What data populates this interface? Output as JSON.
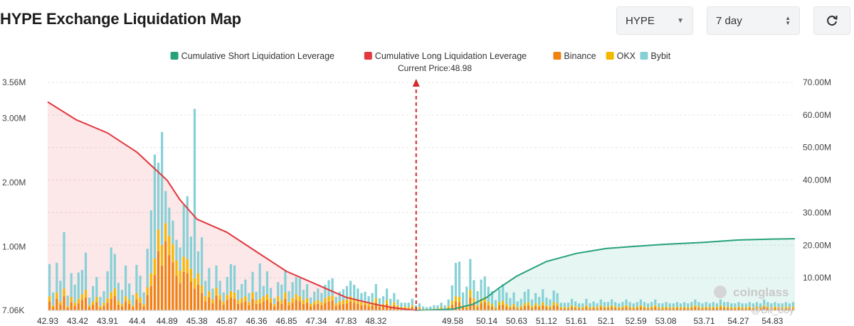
{
  "header": {
    "title": "HYPE Exchange Liquidation Map",
    "token_select": "HYPE",
    "range_select": "7 day"
  },
  "legend": [
    {
      "label": "Cumulative Short Liquidation Leverage",
      "color": "#26a17b"
    },
    {
      "label": "Cumulative Long Liquidation Leverage",
      "color": "#e0393e"
    },
    {
      "label": "Binance",
      "color": "#f0820f"
    },
    {
      "label": "OKX",
      "color": "#f5b800"
    },
    {
      "label": "Bybit",
      "color": "#86d1d6"
    }
  ],
  "watermark": "coinglass",
  "credit": "@Bit_boy",
  "chart_data": {
    "type": "bar",
    "title": "HYPE Exchange Liquidation Map",
    "current_price_label": "Current Price:48.98",
    "current_price": 48.98,
    "x_tick_labels": [
      "42.93",
      "43.42",
      "43.91",
      "44.4",
      "44.89",
      "45.38",
      "45.87",
      "46.36",
      "46.85",
      "47.34",
      "47.83",
      "48.32",
      "49.58",
      "50.14",
      "50.63",
      "51.12",
      "51.61",
      "52.1",
      "52.59",
      "53.08",
      "53.71",
      "54.27",
      "54.83"
    ],
    "left_axis_tick_labels": [
      "7.06K",
      "1.00M",
      "2.00M",
      "3.00M",
      "3.56M"
    ],
    "left_axis_ticks": [
      0.00706,
      1.0,
      2.0,
      3.0,
      3.56
    ],
    "ylim_left": [
      0.00706,
      3.56
    ],
    "right_axis_tick_labels": [
      "10.00M",
      "20.00M",
      "30.00M",
      "40.00M",
      "50.00M",
      "60.00M",
      "70.00M"
    ],
    "right_axis_ticks": [
      10,
      20,
      30,
      40,
      50,
      60,
      70
    ],
    "ylim_right": [
      0,
      70
    ],
    "grid": true,
    "legend_position": "top-center",
    "x_range": [
      42.93,
      55.2
    ],
    "bar_series": [
      {
        "name": "Binance",
        "color": "#f0820f",
        "values": [
          0.14,
          0.05,
          0.18,
          0.09,
          0.22,
          0.04,
          0.13,
          0.07,
          0.11,
          0.16,
          0.2,
          0.05,
          0.09,
          0.13,
          0.04,
          0.07,
          0.12,
          0.18,
          0.22,
          0.09,
          0.06,
          0.14,
          0.1,
          0.05,
          0.17,
          0.12,
          0.06,
          0.24,
          0.38,
          0.55,
          0.92,
          0.7,
          1.08,
          0.86,
          0.75,
          0.54,
          0.42,
          0.6,
          0.58,
          0.45,
          0.34,
          0.4,
          0.27,
          0.14,
          0.2,
          0.11,
          0.23,
          0.16,
          0.09,
          0.16,
          0.2,
          0.18,
          0.1,
          0.12,
          0.14,
          0.08,
          0.18,
          0.1,
          0.11,
          0.14,
          0.16,
          0.12,
          0.06,
          0.14,
          0.1,
          0.18,
          0.08,
          0.12,
          0.16,
          0.14,
          0.1,
          0.12,
          0.06,
          0.09,
          0.1,
          0.08,
          0.12,
          0.14,
          0.15,
          0.07,
          0.09,
          0.1,
          0.11,
          0.14,
          0.12,
          0.1,
          0.08,
          0.09,
          0.06,
          0.08,
          0.12,
          0.05,
          0.06,
          0.1,
          0.05,
          0.08,
          0.05,
          0.03,
          0.04,
          0.03,
          0.05,
          0.02,
          0.03,
          0.01,
          0.01,
          0.01,
          0.02,
          0.02,
          0.03,
          0.02,
          0.04,
          0.09,
          0.14,
          0.13,
          0.05,
          0.04,
          0.2,
          0.12,
          0.05,
          0.11,
          0.13,
          0.08,
          0.06,
          0.03,
          0.08,
          0.09,
          0.06,
          0.04,
          0.06,
          0.03,
          0.04,
          0.07,
          0.08,
          0.04,
          0.07,
          0.05,
          0.08,
          0.05,
          0.04,
          0.08,
          0.07,
          0.03,
          0.03,
          0.03,
          0.05,
          0.04,
          0.03,
          0.03,
          0.05,
          0.03,
          0.04,
          0.03,
          0.05,
          0.04,
          0.04,
          0.05,
          0.04,
          0.03,
          0.04,
          0.05,
          0.04,
          0.03,
          0.04,
          0.05,
          0.04,
          0.03,
          0.04,
          0.05,
          0.03,
          0.03,
          0.04,
          0.03,
          0.03,
          0.04,
          0.03,
          0.04,
          0.03,
          0.04,
          0.05,
          0.04,
          0.03,
          0.04,
          0.03,
          0.04,
          0.03,
          0.05,
          0.04,
          0.04,
          0.03,
          0.03,
          0.04,
          0.03,
          0.03,
          0.04,
          0.03,
          0.04,
          0.03,
          0.05,
          0.04,
          0.03,
          0.04,
          0.03,
          0.03,
          0.04,
          0.03,
          0.04
        ]
      },
      {
        "name": "OKX",
        "color": "#f5b800",
        "values": [
          0.08,
          0.03,
          0.1,
          0.05,
          0.12,
          0.03,
          0.08,
          0.05,
          0.07,
          0.09,
          0.12,
          0.03,
          0.05,
          0.08,
          0.03,
          0.05,
          0.07,
          0.1,
          0.12,
          0.06,
          0.04,
          0.08,
          0.06,
          0.03,
          0.1,
          0.08,
          0.04,
          0.12,
          0.2,
          0.26,
          0.34,
          0.32,
          0.28,
          0.3,
          0.28,
          0.24,
          0.2,
          0.24,
          0.22,
          0.2,
          0.16,
          0.18,
          0.12,
          0.08,
          0.1,
          0.06,
          0.12,
          0.08,
          0.05,
          0.08,
          0.1,
          0.1,
          0.06,
          0.07,
          0.08,
          0.05,
          0.1,
          0.06,
          0.07,
          0.08,
          0.09,
          0.07,
          0.04,
          0.08,
          0.06,
          0.1,
          0.05,
          0.07,
          0.09,
          0.08,
          0.06,
          0.07,
          0.04,
          0.05,
          0.06,
          0.05,
          0.07,
          0.08,
          0.08,
          0.04,
          0.05,
          0.06,
          0.06,
          0.08,
          0.07,
          0.06,
          0.05,
          0.05,
          0.04,
          0.05,
          0.07,
          0.03,
          0.04,
          0.06,
          0.03,
          0.05,
          0.03,
          0.02,
          0.02,
          0.02,
          0.03,
          0.01,
          0.02,
          0.01,
          0.01,
          0.01,
          0.01,
          0.01,
          0.02,
          0.01,
          0.03,
          0.06,
          0.08,
          0.08,
          0.03,
          0.03,
          0.12,
          0.07,
          0.03,
          0.07,
          0.08,
          0.05,
          0.04,
          0.02,
          0.05,
          0.06,
          0.04,
          0.03,
          0.04,
          0.02,
          0.03,
          0.04,
          0.05,
          0.03,
          0.04,
          0.03,
          0.05,
          0.03,
          0.03,
          0.05,
          0.04,
          0.02,
          0.02,
          0.02,
          0.03,
          0.02,
          0.02,
          0.02,
          0.03,
          0.02,
          0.02,
          0.02,
          0.03,
          0.02,
          0.02,
          0.03,
          0.02,
          0.02,
          0.02,
          0.03,
          0.02,
          0.02,
          0.02,
          0.03,
          0.02,
          0.02,
          0.02,
          0.03,
          0.02,
          0.02,
          0.02,
          0.02,
          0.02,
          0.02,
          0.02,
          0.02,
          0.02,
          0.02,
          0.03,
          0.02,
          0.02,
          0.02,
          0.02,
          0.02,
          0.02,
          0.03,
          0.02,
          0.02,
          0.02,
          0.02,
          0.02,
          0.02,
          0.02,
          0.02,
          0.02,
          0.02,
          0.02,
          0.03,
          0.02,
          0.02,
          0.02,
          0.02,
          0.02,
          0.02,
          0.02,
          0.02
        ]
      },
      {
        "name": "Bybit",
        "color": "#86d1d6",
        "values": [
          0.5,
          0.2,
          0.46,
          0.32,
          0.88,
          0.16,
          0.37,
          0.28,
          0.41,
          0.38,
          0.58,
          0.12,
          0.24,
          0.31,
          0.14,
          0.18,
          0.42,
          0.7,
          0.54,
          0.28,
          0.22,
          0.48,
          0.26,
          0.16,
          0.44,
          0.34,
          0.18,
          0.6,
          0.98,
          1.62,
          1.04,
          1.76,
          0.5,
          0.44,
          0.37,
          0.32,
          0.36,
          0.8,
          0.98,
          0.5,
          2.64,
          0.34,
          0.75,
          0.24,
          0.36,
          0.17,
          0.35,
          0.22,
          0.14,
          0.28,
          0.42,
          0.42,
          0.16,
          0.22,
          0.26,
          0.14,
          0.32,
          0.13,
          0.55,
          0.16,
          0.36,
          0.16,
          0.09,
          0.22,
          0.24,
          0.35,
          0.17,
          0.25,
          0.27,
          0.28,
          0.16,
          0.22,
          0.1,
          0.15,
          0.18,
          0.14,
          0.21,
          0.25,
          0.27,
          0.1,
          0.15,
          0.17,
          0.21,
          0.24,
          0.21,
          0.18,
          0.14,
          0.15,
          0.12,
          0.14,
          0.22,
          0.11,
          0.12,
          0.18,
          0.1,
          0.14,
          0.09,
          0.07,
          0.06,
          0.07,
          0.1,
          0.05,
          0.06,
          0.04,
          0.03,
          0.04,
          0.05,
          0.05,
          0.07,
          0.05,
          0.1,
          0.24,
          0.52,
          0.55,
          0.2,
          0.3,
          0.48,
          0.28,
          0.22,
          0.3,
          0.32,
          0.24,
          0.2,
          0.11,
          0.2,
          0.26,
          0.18,
          0.12,
          0.18,
          0.09,
          0.11,
          0.18,
          0.2,
          0.1,
          0.16,
          0.13,
          0.2,
          0.12,
          0.1,
          0.18,
          0.16,
          0.07,
          0.07,
          0.07,
          0.1,
          0.08,
          0.06,
          0.06,
          0.1,
          0.06,
          0.08,
          0.06,
          0.09,
          0.07,
          0.07,
          0.09,
          0.07,
          0.06,
          0.07,
          0.09,
          0.07,
          0.06,
          0.07,
          0.09,
          0.07,
          0.06,
          0.07,
          0.09,
          0.06,
          0.06,
          0.07,
          0.06,
          0.06,
          0.07,
          0.06,
          0.07,
          0.06,
          0.07,
          0.09,
          0.07,
          0.06,
          0.07,
          0.06,
          0.07,
          0.06,
          0.09,
          0.07,
          0.07,
          0.06,
          0.06,
          0.07,
          0.06,
          0.06,
          0.07,
          0.06,
          0.07,
          0.06,
          0.09,
          0.07,
          0.06,
          0.07,
          0.06,
          0.06,
          0.07,
          0.06,
          0.07
        ]
      }
    ],
    "line_series": [
      {
        "name": "Cumulative Long Liquidation Leverage",
        "color": "#e0393e",
        "axis": "right",
        "x": [
          42.93,
          43.4,
          43.91,
          44.4,
          44.6,
          44.89,
          45.1,
          45.38,
          45.87,
          46.36,
          46.85,
          47.34,
          47.83,
          48.32,
          48.6,
          48.98
        ],
        "y": [
          64,
          58.5,
          54.5,
          48.5,
          45,
          40,
          34,
          28,
          24,
          18,
          12,
          8,
          4,
          1.8,
          0.8,
          0
        ]
      },
      {
        "name": "Cumulative Short Liquidation Leverage",
        "color": "#26a17b",
        "axis": "right",
        "x": [
          48.98,
          49.58,
          49.9,
          50.14,
          50.35,
          50.63,
          50.9,
          51.12,
          51.61,
          52.1,
          52.59,
          53.08,
          53.71,
          54.27,
          54.83,
          55.2
        ],
        "y": [
          0,
          0.4,
          1.8,
          4,
          7,
          10.5,
          13,
          15,
          17.5,
          19,
          19.7,
          20.3,
          20.9,
          21.6,
          21.9,
          22
        ]
      }
    ]
  }
}
